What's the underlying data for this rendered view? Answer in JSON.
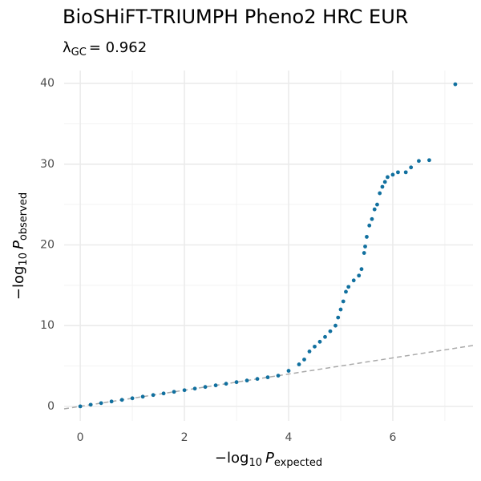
{
  "chart_data": {
    "type": "scatter",
    "title": "BioSHiFT-TRIUMPH Pheno2 HRC EUR",
    "subtitle": {
      "symbol": "λ",
      "subscript": "GC",
      "text": "= 0.962"
    },
    "x_label": {
      "prefix": "−log",
      "sub": "10",
      "var": "P",
      "var_sub": "expected"
    },
    "y_label": {
      "prefix": "−log",
      "sub": "10",
      "var": "P",
      "var_sub": "observed"
    },
    "color": "#11709f",
    "diagonal": true,
    "grid": true,
    "xlim": [
      -0.31,
      7.54
    ],
    "ylim": [
      -1.8,
      41.6
    ],
    "xticks": [
      0,
      2,
      4,
      6
    ],
    "yticks": [
      0,
      10,
      20,
      30,
      40
    ],
    "xminor": [
      1,
      3,
      5,
      7
    ],
    "yminor": [
      5,
      15,
      25,
      35
    ],
    "x": [
      0,
      0.2,
      0.4,
      0.6,
      0.8,
      1.0,
      1.2,
      1.4,
      1.6,
      1.8,
      2.0,
      2.2,
      2.4,
      2.6,
      2.8,
      3.0,
      3.2,
      3.4,
      3.6,
      3.8,
      4.0,
      4.2,
      4.3,
      4.4,
      4.5,
      4.6,
      4.7,
      4.8,
      4.9,
      4.95,
      5.0,
      5.05,
      5.1,
      5.15,
      5.25,
      5.35,
      5.4,
      5.45,
      5.47,
      5.5,
      5.55,
      5.6,
      5.65,
      5.7,
      5.75,
      5.8,
      5.85,
      5.9,
      6.0,
      6.1,
      6.25,
      6.35,
      6.5,
      6.7,
      7.2
    ],
    "values": [
      0,
      0.2,
      0.4,
      0.6,
      0.8,
      1.0,
      1.2,
      1.4,
      1.6,
      1.8,
      2.0,
      2.2,
      2.4,
      2.6,
      2.8,
      3.0,
      3.2,
      3.4,
      3.6,
      3.8,
      4.4,
      5.2,
      5.8,
      6.8,
      7.4,
      8.0,
      8.6,
      9.3,
      10.0,
      11.0,
      12.0,
      13.0,
      14.2,
      14.8,
      15.6,
      16.2,
      17.0,
      19.0,
      19.8,
      21.0,
      22.4,
      23.2,
      24.4,
      25.0,
      26.4,
      27.2,
      27.8,
      28.4,
      28.7,
      29.0,
      29.0,
      29.6,
      30.4,
      30.5,
      39.9
    ]
  }
}
